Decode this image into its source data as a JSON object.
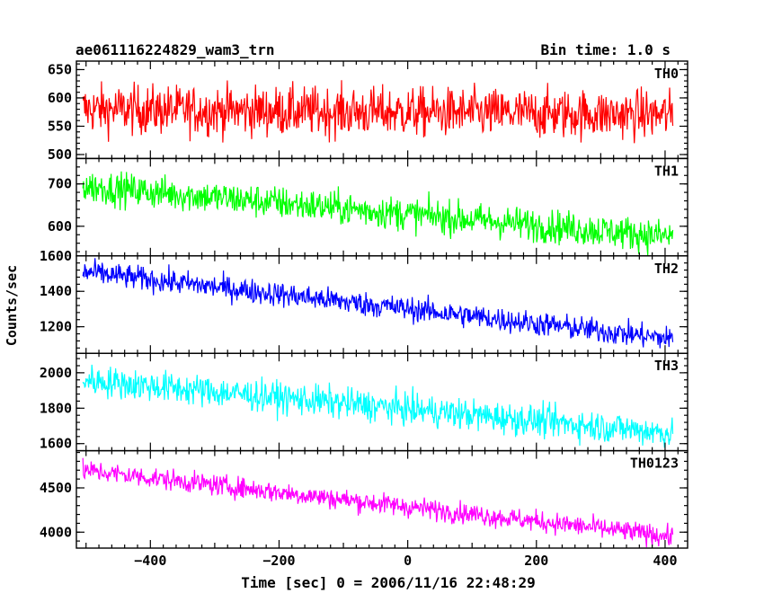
{
  "chart_data": {
    "type": "line",
    "title": "ae061116224829_wam3_trn",
    "subtitle": "Bin time: 1.0 s",
    "xlabel": "Time [sec] 0 = 2006/11/16 22:48:29",
    "ylabel": "Counts/sec",
    "xlim": [
      -515,
      435
    ],
    "x_ticks": [
      -400,
      -200,
      0,
      200,
      400
    ],
    "x_range_data": [
      -505,
      412
    ],
    "grid": false,
    "legend": "per-panel label top-right",
    "series": [
      {
        "name": "TH0",
        "color": "#ff0000",
        "ylim": [
          493,
          665
        ],
        "y_ticks": [
          500,
          550,
          600,
          650
        ],
        "start": 580,
        "end": 570,
        "noise": 22
      },
      {
        "name": "TH1",
        "color": "#00ff00",
        "ylim": [
          530,
          760
        ],
        "y_ticks": [
          600,
          700
        ],
        "start": 695,
        "end": 575,
        "noise": 20
      },
      {
        "name": "TH2",
        "color": "#0000ff",
        "ylim": [
          1050,
          1600
        ],
        "y_ticks": [
          1200,
          1400,
          1600
        ],
        "start": 1510,
        "end": 1130,
        "noise": 35
      },
      {
        "name": "TH3",
        "color": "#00ffff",
        "ylim": [
          1560,
          2110
        ],
        "y_ticks": [
          1600,
          1800,
          2000
        ],
        "start": 1960,
        "end": 1660,
        "noise": 45
      },
      {
        "name": "TH0123",
        "color": "#ff00ff",
        "ylim": [
          3820,
          4920
        ],
        "y_ticks": [
          4000,
          4500
        ],
        "start": 4700,
        "end": 3950,
        "noise": 60
      }
    ]
  }
}
